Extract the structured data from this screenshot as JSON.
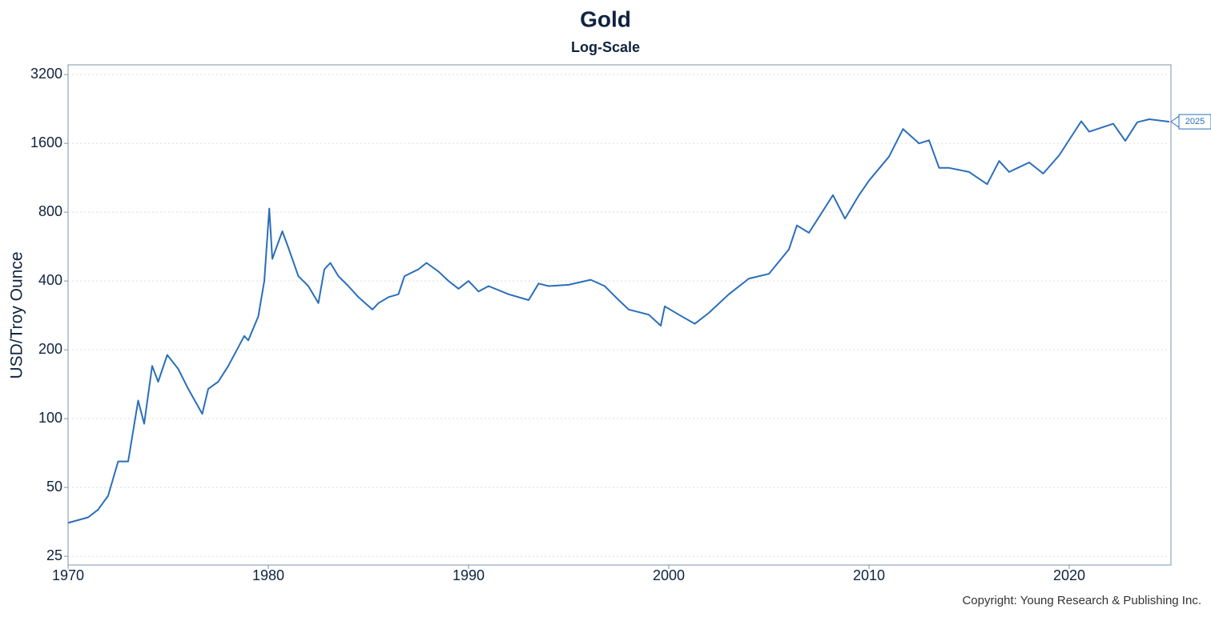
{
  "chart_data": {
    "type": "line",
    "title": "Gold",
    "subtitle": "Log-Scale",
    "y_label": "USD/Troy Ounce",
    "end_label": "2025",
    "copyright": "Copyright: Young Research & Publishing Inc.",
    "color": "#2a6ebb",
    "log_scale": true,
    "grid": true,
    "xlim": [
      1970,
      2025.08
    ],
    "xticks": [
      1970,
      1980,
      1990,
      2000,
      2010,
      2020
    ],
    "ylim": [
      22.9,
      3530
    ],
    "yticks": [
      25,
      50,
      100,
      200,
      400,
      800,
      1600,
      3200
    ],
    "x": [
      1970.0,
      1971.0,
      1971.5,
      1972.0,
      1972.5,
      1973.0,
      1973.5,
      1973.8,
      1974.2,
      1974.5,
      1974.95,
      1975.5,
      1976.0,
      1976.7,
      1977.0,
      1977.5,
      1978.0,
      1978.8,
      1979.0,
      1979.5,
      1979.8,
      1980.05,
      1980.2,
      1980.7,
      1981.0,
      1981.5,
      1982.0,
      1982.5,
      1982.8,
      1983.1,
      1983.5,
      1984.0,
      1984.5,
      1985.2,
      1985.5,
      1986.0,
      1986.5,
      1986.8,
      1987.5,
      1987.9,
      1988.5,
      1989.0,
      1989.5,
      1990.0,
      1990.5,
      1991.0,
      1992.0,
      1993.0,
      1993.5,
      1994.0,
      1995.0,
      1996.1,
      1996.8,
      1997.5,
      1998.0,
      1999.0,
      1999.6,
      1999.8,
      2000.5,
      2001.3,
      2002.0,
      2003.0,
      2004.0,
      2005.0,
      2006.0,
      2006.4,
      2007.0,
      2008.2,
      2008.8,
      2009.5,
      2010.0,
      2011.0,
      2011.7,
      2012.5,
      2013.0,
      2013.5,
      2014.0,
      2015.0,
      2015.9,
      2016.5,
      2017.0,
      2018.0,
      2018.7,
      2019.5,
      2020.6,
      2021.0,
      2022.2,
      2022.8,
      2023.4,
      2024.0,
      2025.0
    ],
    "values": [
      35,
      37,
      40,
      46,
      65,
      65,
      120,
      95,
      170,
      145,
      190,
      165,
      135,
      105,
      135,
      145,
      170,
      230,
      220,
      280,
      400,
      830,
      500,
      660,
      560,
      420,
      380,
      320,
      450,
      480,
      420,
      380,
      340,
      300,
      320,
      340,
      350,
      420,
      450,
      480,
      440,
      400,
      370,
      400,
      360,
      380,
      350,
      330,
      390,
      380,
      385,
      405,
      380,
      330,
      300,
      285,
      255,
      310,
      285,
      260,
      290,
      350,
      410,
      430,
      550,
      700,
      650,
      950,
      750,
      950,
      1100,
      1400,
      1850,
      1600,
      1650,
      1250,
      1250,
      1200,
      1060,
      1340,
      1200,
      1320,
      1180,
      1420,
      2000,
      1800,
      1950,
      1640,
      1980,
      2040,
      1990
    ]
  }
}
